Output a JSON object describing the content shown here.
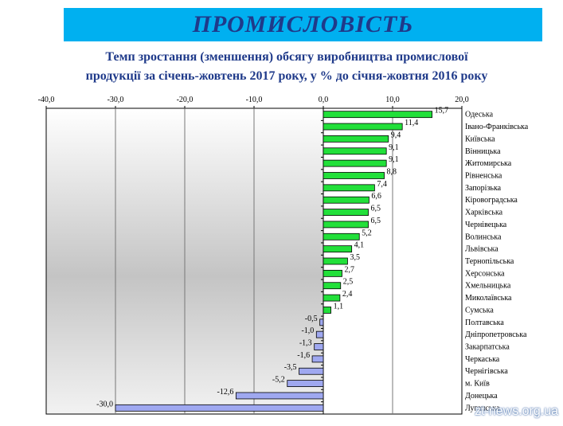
{
  "banner": {
    "title": "ПРОМИСЛОВІСТЬ"
  },
  "subtitle": {
    "line1": "Темп зростання (зменшення) обсягу виробництва промислової",
    "line2": "продукції за січень-жовтень 2017 року, у % до січня-жовтня 2016 року"
  },
  "watermark": "zt-news.org.ua",
  "chart_data": {
    "type": "bar",
    "orientation": "horizontal",
    "title": "",
    "xlabel": "",
    "ylabel": "",
    "xlim": [
      -40,
      20
    ],
    "x_ticks": [
      "-40,0",
      "-30,0",
      "-20,0",
      "-10,0",
      "0,0",
      "10,0",
      "20,0"
    ],
    "x_tick_values": [
      -40,
      -30,
      -20,
      -10,
      0,
      10,
      20
    ],
    "tick_position": "top",
    "grid": true,
    "legend": "none",
    "colors": {
      "positive": "#22e03a",
      "negative": "#9fa8f0",
      "bar_border": "#000000"
    },
    "categories": [
      "Одеська",
      "Івано-Франківська",
      "Київська",
      "Вінницька",
      "Житомирська",
      "Рівненська",
      "Запорізька",
      "Кіровоградська",
      "Харківська",
      "Чернівецька",
      "Волинська",
      "Львівська",
      "Тернопільська",
      "Херсонська",
      "Хмельницька",
      "Миколаївська",
      "Сумська",
      "Полтавська",
      "Дніпропетровська",
      "Закарпатська",
      "Черкаська",
      "Чернігівська",
      "м. Київ",
      "Донецька",
      "Луганська"
    ],
    "values": [
      15.7,
      11.4,
      9.4,
      9.1,
      9.1,
      8.8,
      7.4,
      6.6,
      6.5,
      6.5,
      5.2,
      4.1,
      3.5,
      2.7,
      2.5,
      2.4,
      1.1,
      -0.5,
      -1.0,
      -1.3,
      -1.6,
      -3.5,
      -5.2,
      -12.6,
      -30.0
    ],
    "value_labels": [
      "15,7",
      "11,4",
      "9,4",
      "9,1",
      "9,1",
      "8,8",
      "7,4",
      "6,6",
      "6,5",
      "6,5",
      "5,2",
      "4,1",
      "3,5",
      "2,7",
      "2,5",
      "2,4",
      "1,1",
      "-0,5",
      "-1,0",
      "-1,3",
      "-1,6",
      "-3,5",
      "-5,2",
      "-12,6",
      "-30,0"
    ]
  }
}
